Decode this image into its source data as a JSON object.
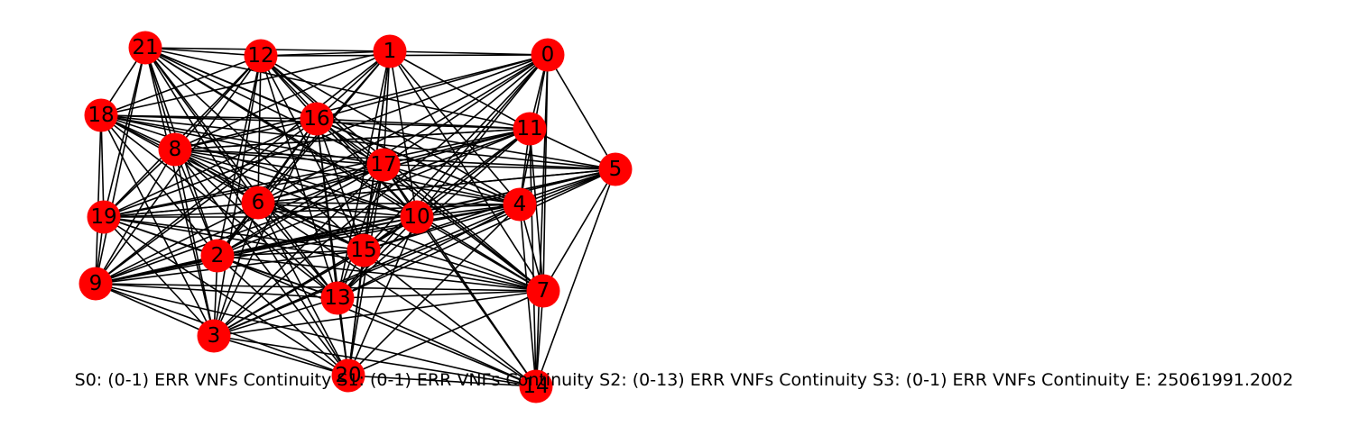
{
  "nodes": [
    {
      "id": "0"
    },
    {
      "id": "1"
    },
    {
      "id": "2"
    },
    {
      "id": "3"
    },
    {
      "id": "4"
    },
    {
      "id": "5"
    },
    {
      "id": "6"
    },
    {
      "id": "7"
    },
    {
      "id": "8"
    },
    {
      "id": "9"
    },
    {
      "id": "10"
    },
    {
      "id": "11"
    },
    {
      "id": "12"
    },
    {
      "id": "13"
    },
    {
      "id": "14"
    },
    {
      "id": "15"
    },
    {
      "id": "16"
    },
    {
      "id": "17"
    },
    {
      "id": "18"
    },
    {
      "id": "19"
    },
    {
      "id": "20"
    },
    {
      "id": "21"
    }
  ],
  "edges": [
    [
      "0",
      "1"
    ],
    [
      "0",
      "5"
    ],
    [
      "0",
      "11"
    ],
    [
      "0",
      "17"
    ],
    [
      "0",
      "10"
    ],
    [
      "0",
      "4"
    ],
    [
      "0",
      "7"
    ],
    [
      "0",
      "14"
    ],
    [
      "0",
      "12"
    ],
    [
      "0",
      "16"
    ],
    [
      "0",
      "8"
    ],
    [
      "0",
      "6"
    ],
    [
      "0",
      "2"
    ],
    [
      "0",
      "15"
    ],
    [
      "0",
      "13"
    ],
    [
      "0",
      "3"
    ],
    [
      "0",
      "19"
    ],
    [
      "1",
      "12"
    ],
    [
      "1",
      "21"
    ],
    [
      "1",
      "16"
    ],
    [
      "1",
      "17"
    ],
    [
      "1",
      "11"
    ],
    [
      "1",
      "4"
    ],
    [
      "1",
      "10"
    ],
    [
      "1",
      "15"
    ],
    [
      "1",
      "13"
    ],
    [
      "1",
      "20"
    ],
    [
      "1",
      "7"
    ],
    [
      "1",
      "8"
    ],
    [
      "1",
      "6"
    ],
    [
      "1",
      "18"
    ],
    [
      "1",
      "9"
    ],
    [
      "1",
      "2"
    ],
    [
      "21",
      "12"
    ],
    [
      "21",
      "18"
    ],
    [
      "21",
      "16"
    ],
    [
      "21",
      "17"
    ],
    [
      "21",
      "8"
    ],
    [
      "21",
      "19"
    ],
    [
      "21",
      "9"
    ],
    [
      "21",
      "6"
    ],
    [
      "21",
      "2"
    ],
    [
      "21",
      "3"
    ],
    [
      "21",
      "10"
    ],
    [
      "21",
      "4"
    ],
    [
      "21",
      "15"
    ],
    [
      "21",
      "13"
    ],
    [
      "21",
      "7"
    ],
    [
      "21",
      "11"
    ],
    [
      "21",
      "20"
    ],
    [
      "12",
      "18"
    ],
    [
      "12",
      "16"
    ],
    [
      "12",
      "17"
    ],
    [
      "12",
      "8"
    ],
    [
      "12",
      "6"
    ],
    [
      "12",
      "10"
    ],
    [
      "12",
      "19"
    ],
    [
      "12",
      "9"
    ],
    [
      "12",
      "2"
    ],
    [
      "12",
      "13"
    ],
    [
      "12",
      "15"
    ],
    [
      "12",
      "4"
    ],
    [
      "12",
      "7"
    ],
    [
      "12",
      "3"
    ],
    [
      "18",
      "16"
    ],
    [
      "18",
      "8"
    ],
    [
      "18",
      "19"
    ],
    [
      "18",
      "17"
    ],
    [
      "18",
      "11"
    ],
    [
      "18",
      "10"
    ],
    [
      "18",
      "6"
    ],
    [
      "18",
      "2"
    ],
    [
      "18",
      "13"
    ],
    [
      "18",
      "15"
    ],
    [
      "18",
      "9"
    ],
    [
      "18",
      "3"
    ],
    [
      "18",
      "4"
    ],
    [
      "18",
      "5"
    ],
    [
      "16",
      "11"
    ],
    [
      "16",
      "17"
    ],
    [
      "16",
      "8"
    ],
    [
      "16",
      "6"
    ],
    [
      "16",
      "10"
    ],
    [
      "16",
      "4"
    ],
    [
      "16",
      "5"
    ],
    [
      "16",
      "7"
    ],
    [
      "16",
      "15"
    ],
    [
      "16",
      "13"
    ],
    [
      "16",
      "2"
    ],
    [
      "16",
      "19"
    ],
    [
      "16",
      "9"
    ],
    [
      "16",
      "20"
    ],
    [
      "16",
      "3"
    ],
    [
      "11",
      "17"
    ],
    [
      "11",
      "5"
    ],
    [
      "11",
      "4"
    ],
    [
      "11",
      "10"
    ],
    [
      "11",
      "15"
    ],
    [
      "11",
      "13"
    ],
    [
      "11",
      "7"
    ],
    [
      "11",
      "14"
    ],
    [
      "11",
      "8"
    ],
    [
      "11",
      "6"
    ],
    [
      "11",
      "2"
    ],
    [
      "11",
      "9"
    ],
    [
      "11",
      "19"
    ],
    [
      "8",
      "17"
    ],
    [
      "8",
      "5"
    ],
    [
      "8",
      "4"
    ],
    [
      "8",
      "10"
    ],
    [
      "8",
      "6"
    ],
    [
      "8",
      "2"
    ],
    [
      "8",
      "19"
    ],
    [
      "8",
      "9"
    ],
    [
      "8",
      "3"
    ],
    [
      "8",
      "13"
    ],
    [
      "8",
      "15"
    ],
    [
      "8",
      "7"
    ],
    [
      "8",
      "20"
    ],
    [
      "8",
      "11"
    ],
    [
      "17",
      "5"
    ],
    [
      "17",
      "4"
    ],
    [
      "17",
      "10"
    ],
    [
      "17",
      "6"
    ],
    [
      "17",
      "2"
    ],
    [
      "17",
      "15"
    ],
    [
      "17",
      "13"
    ],
    [
      "17",
      "7"
    ],
    [
      "17",
      "20"
    ],
    [
      "17",
      "19"
    ],
    [
      "17",
      "9"
    ],
    [
      "17",
      "3"
    ],
    [
      "17",
      "14"
    ],
    [
      "5",
      "4"
    ],
    [
      "5",
      "10"
    ],
    [
      "5",
      "7"
    ],
    [
      "5",
      "14"
    ],
    [
      "5",
      "6"
    ],
    [
      "5",
      "2"
    ],
    [
      "5",
      "15"
    ],
    [
      "5",
      "13"
    ],
    [
      "5",
      "19"
    ],
    [
      "5",
      "9"
    ],
    [
      "5",
      "3"
    ],
    [
      "4",
      "10"
    ],
    [
      "4",
      "7"
    ],
    [
      "4",
      "14"
    ],
    [
      "4",
      "6"
    ],
    [
      "4",
      "2"
    ],
    [
      "4",
      "15"
    ],
    [
      "4",
      "13"
    ],
    [
      "4",
      "20"
    ],
    [
      "4",
      "19"
    ],
    [
      "4",
      "9"
    ],
    [
      "4",
      "3"
    ],
    [
      "6",
      "10"
    ],
    [
      "6",
      "2"
    ],
    [
      "6",
      "15"
    ],
    [
      "6",
      "13"
    ],
    [
      "6",
      "19"
    ],
    [
      "6",
      "9"
    ],
    [
      "6",
      "3"
    ],
    [
      "6",
      "20"
    ],
    [
      "6",
      "7"
    ],
    [
      "6",
      "14"
    ],
    [
      "10",
      "2"
    ],
    [
      "10",
      "15"
    ],
    [
      "10",
      "13"
    ],
    [
      "10",
      "7"
    ],
    [
      "10",
      "20"
    ],
    [
      "10",
      "19"
    ],
    [
      "10",
      "9"
    ],
    [
      "10",
      "3"
    ],
    [
      "10",
      "14"
    ],
    [
      "19",
      "9"
    ],
    [
      "19",
      "2"
    ],
    [
      "19",
      "15"
    ],
    [
      "19",
      "13"
    ],
    [
      "19",
      "3"
    ],
    [
      "19",
      "20"
    ],
    [
      "19",
      "7"
    ],
    [
      "2",
      "15"
    ],
    [
      "2",
      "13"
    ],
    [
      "2",
      "9"
    ],
    [
      "2",
      "3"
    ],
    [
      "2",
      "20"
    ],
    [
      "2",
      "7"
    ],
    [
      "2",
      "14"
    ],
    [
      "15",
      "13"
    ],
    [
      "15",
      "9"
    ],
    [
      "15",
      "3"
    ],
    [
      "15",
      "20"
    ],
    [
      "15",
      "7"
    ],
    [
      "15",
      "14"
    ],
    [
      "9",
      "13"
    ],
    [
      "9",
      "3"
    ],
    [
      "9",
      "20"
    ],
    [
      "9",
      "7"
    ],
    [
      "9",
      "14"
    ],
    [
      "13",
      "3"
    ],
    [
      "13",
      "20"
    ],
    [
      "13",
      "7"
    ],
    [
      "13",
      "14"
    ],
    [
      "7",
      "3"
    ],
    [
      "7",
      "20"
    ],
    [
      "7",
      "14"
    ],
    [
      "3",
      "20"
    ],
    [
      "3",
      "14"
    ],
    [
      "20",
      "14"
    ]
  ],
  "colors": {
    "node": "#ff0000",
    "edge": "#000000",
    "label": "#000000"
  },
  "caption": "S0: (0-1) ERR VNFs Continuity S1: (0-1) ERR VNFs Continuity S2: (0-13) ERR VNFs Continuity S3: (0-1) ERR VNFs Continuity  E: 25061991.2002"
}
